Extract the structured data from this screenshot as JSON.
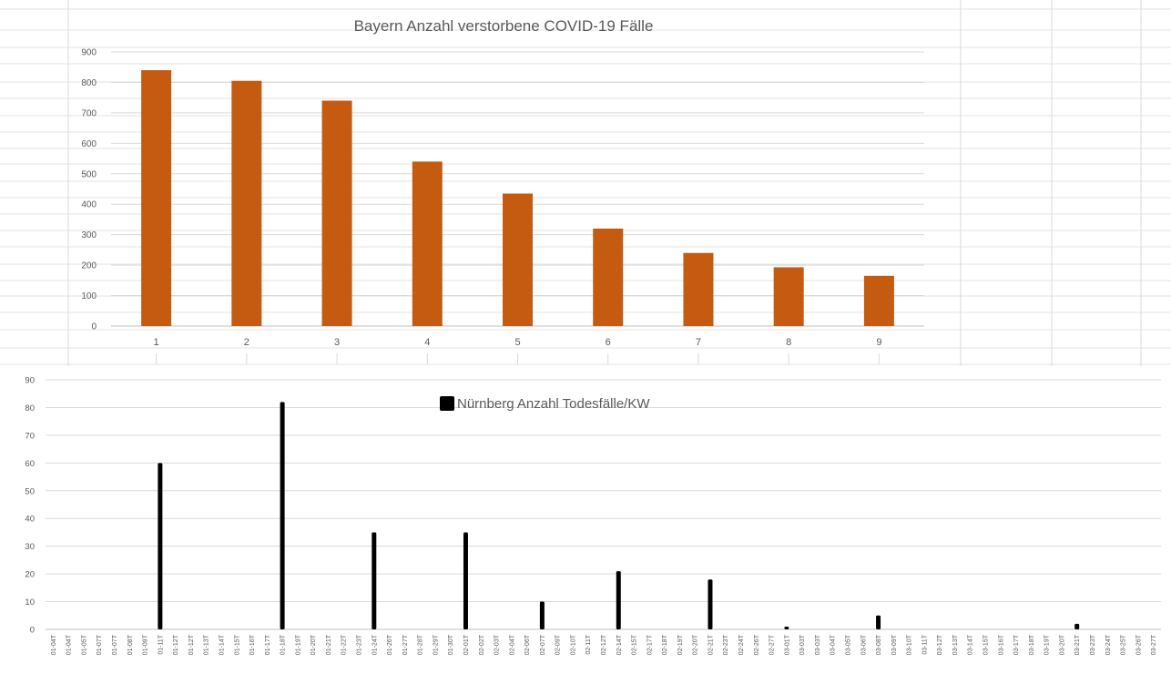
{
  "chart_data": [
    {
      "type": "bar",
      "title": "Bayern Anzahl verstorbene COVID-19 Fälle",
      "categories": [
        "1",
        "2",
        "3",
        "4",
        "5",
        "6",
        "7",
        "8",
        "9"
      ],
      "values": [
        840,
        805,
        740,
        540,
        435,
        320,
        240,
        193,
        165
      ],
      "ylim": [
        0,
        900
      ],
      "yticks": [
        0,
        100,
        200,
        300,
        400,
        500,
        600,
        700,
        800,
        900
      ],
      "grid": true,
      "colors": {
        "bar": "#c55a11",
        "grid": "#d9d9d9"
      }
    },
    {
      "type": "bar",
      "legend": [
        "Nürnberg Anzahl Todesfälle/KW"
      ],
      "legend_position": "top-center",
      "categories": [
        "01-04T",
        "01-04T",
        "01-05T",
        "01-07T",
        "01-07T",
        "01-08T",
        "01-09T",
        "01-11T",
        "01-12T",
        "01-12T",
        "01-13T",
        "01-14T",
        "01-15T",
        "01-16T",
        "01-17T",
        "01-18T",
        "01-19T",
        "01-20T",
        "01-21T",
        "01-22T",
        "01-23T",
        "01-24T",
        "01-26T",
        "01-27T",
        "01-28T",
        "01-29T",
        "01-30T",
        "02-01T",
        "02-02T",
        "02-03T",
        "02-04T",
        "02-06T",
        "02-07T",
        "02-09T",
        "02-10T",
        "02-11T",
        "02-12T",
        "02-14T",
        "02-15T",
        "02-17T",
        "02-18T",
        "02-19T",
        "02-20T",
        "02-21T",
        "02-23T",
        "02-24T",
        "02-26T",
        "02-27T",
        "03-01T",
        "03-03T",
        "03-03T",
        "03-04T",
        "03-05T",
        "03-06T",
        "03-08T",
        "03-09T",
        "03-10T",
        "03-11T",
        "03-12T",
        "03-13T",
        "03-14T",
        "03-15T",
        "03-16T",
        "03-17T",
        "03-18T",
        "03-19T",
        "03-20T",
        "03-21T",
        "03-23T",
        "03-24T",
        "03-25T",
        "03-26T",
        "03-27T"
      ],
      "values": [
        0,
        0,
        0,
        0,
        0,
        0,
        0,
        60,
        0,
        0,
        0,
        0,
        0,
        0,
        0,
        82,
        0,
        0,
        0,
        0,
        0,
        35,
        0,
        0,
        0,
        0,
        0,
        35,
        0,
        0,
        0,
        0,
        10,
        0,
        0,
        0,
        0,
        21,
        0,
        0,
        0,
        0,
        0,
        18,
        0,
        0,
        0,
        0,
        1,
        0,
        0,
        0,
        0,
        0,
        5,
        0,
        0,
        0,
        0,
        0,
        0,
        0,
        0,
        0,
        0,
        0,
        0,
        2,
        0,
        0,
        0,
        0,
        0
      ],
      "ylim": [
        0,
        90
      ],
      "yticks": [
        0,
        10,
        20,
        30,
        40,
        50,
        60,
        70,
        80,
        90
      ],
      "grid": true,
      "colors": {
        "bar": "#000000",
        "grid": "#d9d9d9"
      }
    }
  ]
}
